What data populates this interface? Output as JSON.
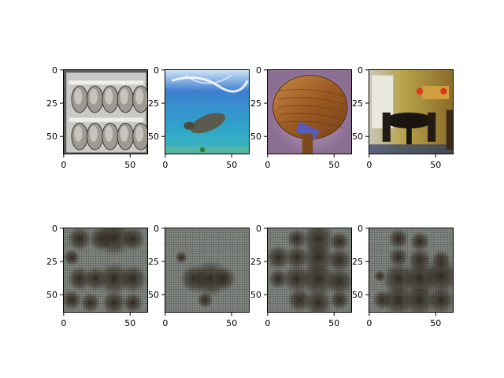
{
  "figure": {
    "title": "",
    "layout": {
      "rows": 2,
      "cols": 4
    }
  },
  "colors": {
    "background": "#ffffff",
    "axis": "#000000",
    "recon_base": "#7f8580",
    "recon_dark": "#2a2218"
  },
  "chart_data": [
    {
      "type": "heatmap",
      "row": 0,
      "col": 0,
      "content": "barrels-photo",
      "xlim": [
        -0.5,
        63.5
      ],
      "ylim": [
        63.5,
        -0.5
      ],
      "xticks": [
        0,
        50
      ],
      "xtick_labels": [
        "0",
        "50"
      ],
      "yticks": [
        0,
        25,
        50
      ],
      "ytick_labels": [
        "0",
        "25",
        "50"
      ]
    },
    {
      "type": "heatmap",
      "row": 0,
      "col": 1,
      "content": "manatee-underwater-photo",
      "xlim": [
        -0.5,
        63.5
      ],
      "ylim": [
        63.5,
        -0.5
      ],
      "xticks": [
        0,
        50
      ],
      "xtick_labels": [
        "0",
        "50"
      ],
      "yticks": [
        0,
        25,
        50
      ],
      "ytick_labels": [
        "0",
        "25",
        "50"
      ]
    },
    {
      "type": "heatmap",
      "row": 0,
      "col": 2,
      "content": "wooden-paddle-photo",
      "xlim": [
        -0.5,
        63.5
      ],
      "ylim": [
        63.5,
        -0.5
      ],
      "xticks": [
        0,
        50
      ],
      "xtick_labels": [
        "0",
        "50"
      ],
      "yticks": [
        0,
        25,
        50
      ],
      "ytick_labels": [
        "0",
        "25",
        "50"
      ]
    },
    {
      "type": "heatmap",
      "row": 0,
      "col": 3,
      "content": "dining-room-photo",
      "xlim": [
        -0.5,
        63.5
      ],
      "ylim": [
        63.5,
        -0.5
      ],
      "xticks": [
        0,
        50
      ],
      "xtick_labels": [
        "0",
        "50"
      ],
      "yticks": [
        0,
        25,
        50
      ],
      "ytick_labels": [
        "0",
        "25",
        "50"
      ]
    },
    {
      "type": "heatmap",
      "row": 1,
      "col": 0,
      "content": "reconstruction",
      "xlim": [
        -0.5,
        63.5
      ],
      "ylim": [
        63.5,
        -0.5
      ],
      "xticks": [
        0,
        50
      ],
      "xtick_labels": [
        "0",
        "50"
      ],
      "yticks": [
        0,
        25,
        50
      ],
      "ytick_labels": [
        "0",
        "25",
        "50"
      ],
      "blobs": [
        [
          12,
          8,
          6
        ],
        [
          28,
          8,
          6
        ],
        [
          38,
          7,
          9
        ],
        [
          52,
          8,
          6
        ],
        [
          6,
          22,
          4
        ],
        [
          12,
          38,
          6
        ],
        [
          24,
          38,
          6
        ],
        [
          38,
          38,
          8
        ],
        [
          52,
          38,
          7
        ],
        [
          6,
          54,
          5
        ],
        [
          20,
          56,
          5
        ],
        [
          38,
          56,
          6
        ],
        [
          52,
          56,
          5
        ]
      ]
    },
    {
      "type": "heatmap",
      "row": 1,
      "col": 1,
      "content": "reconstruction",
      "xlim": [
        -0.5,
        63.5
      ],
      "ylim": [
        63.5,
        -0.5
      ],
      "xticks": [
        0,
        50
      ],
      "xtick_labels": [
        "0",
        "50"
      ],
      "yticks": [
        0,
        25,
        50
      ],
      "ytick_labels": [
        "0",
        "25",
        "50"
      ],
      "blobs": [
        [
          12,
          22,
          3
        ],
        [
          22,
          38,
          7
        ],
        [
          34,
          38,
          9
        ],
        [
          44,
          38,
          6
        ],
        [
          30,
          54,
          4
        ]
      ]
    },
    {
      "type": "heatmap",
      "row": 1,
      "col": 2,
      "content": "reconstruction",
      "xlim": [
        -0.5,
        63.5
      ],
      "ylim": [
        63.5,
        -0.5
      ],
      "xticks": [
        0,
        50
      ],
      "xtick_labels": [
        "0",
        "50"
      ],
      "yticks": [
        0,
        25,
        50
      ],
      "ytick_labels": [
        "0",
        "25",
        "50"
      ],
      "blobs": [
        [
          22,
          8,
          5
        ],
        [
          38,
          8,
          8
        ],
        [
          54,
          10,
          5
        ],
        [
          8,
          22,
          6
        ],
        [
          22,
          22,
          6
        ],
        [
          38,
          22,
          8
        ],
        [
          54,
          24,
          6
        ],
        [
          8,
          38,
          5
        ],
        [
          22,
          38,
          7
        ],
        [
          38,
          38,
          9
        ],
        [
          54,
          40,
          7
        ],
        [
          24,
          54,
          6
        ],
        [
          38,
          56,
          7
        ],
        [
          54,
          54,
          5
        ]
      ]
    },
    {
      "type": "heatmap",
      "row": 1,
      "col": 3,
      "content": "reconstruction",
      "xlim": [
        -0.5,
        63.5
      ],
      "ylim": [
        63.5,
        -0.5
      ],
      "xticks": [
        0,
        50
      ],
      "xtick_labels": [
        "0",
        "50"
      ],
      "yticks": [
        0,
        25,
        50
      ],
      "ytick_labels": [
        "0",
        "25",
        "50"
      ],
      "blobs": [
        [
          22,
          8,
          5
        ],
        [
          38,
          10,
          5
        ],
        [
          22,
          22,
          5
        ],
        [
          38,
          24,
          6
        ],
        [
          54,
          24,
          5
        ],
        [
          8,
          36,
          3
        ],
        [
          22,
          38,
          8
        ],
        [
          38,
          38,
          9
        ],
        [
          54,
          36,
          9
        ],
        [
          10,
          54,
          5
        ],
        [
          22,
          54,
          8
        ],
        [
          38,
          54,
          8
        ],
        [
          54,
          54,
          7
        ]
      ]
    }
  ]
}
